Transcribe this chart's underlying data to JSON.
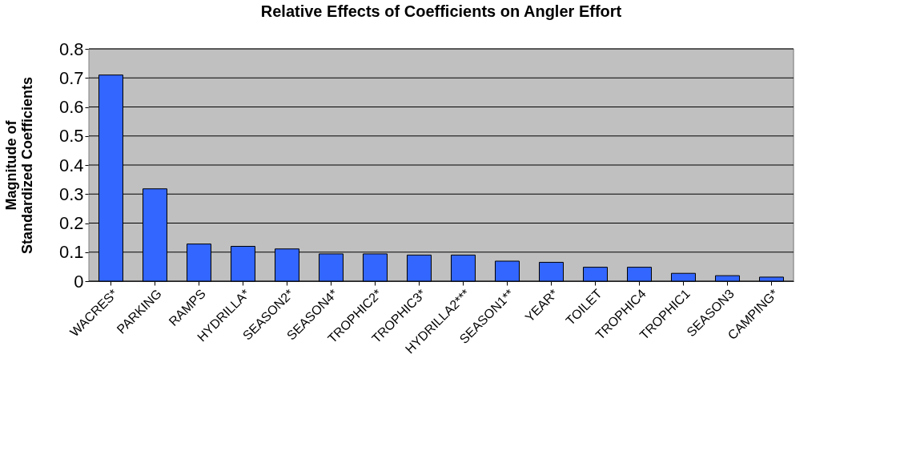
{
  "chart_data": {
    "type": "bar",
    "title": "Relative Effects of Coefficients on Angler Effort",
    "ylabel": "Magnitude of\nStandardized Coefficients",
    "categories": [
      "WACRES*",
      "PARKING",
      "RAMPS",
      "HYDRILLA*",
      "SEASON2*",
      "SEASON4*",
      "TROPHIC2*",
      "TROPHIC3*",
      "HYDRILLA2***",
      "SEASON1**",
      "YEAR*",
      "TOILET",
      "TROPHIC4",
      "TROPHIC1",
      "SEASON3",
      "CAMPING*"
    ],
    "values": [
      0.71,
      0.318,
      0.128,
      0.12,
      0.111,
      0.094,
      0.094,
      0.09,
      0.09,
      0.069,
      0.065,
      0.048,
      0.048,
      0.027,
      0.019,
      0.014
    ],
    "color": "#3366ff",
    "ylim": [
      0,
      0.8
    ],
    "yticks": [
      0,
      0.1,
      0.2,
      0.3,
      0.4,
      0.5,
      0.6,
      0.7,
      0.8
    ],
    "grid": "y"
  }
}
